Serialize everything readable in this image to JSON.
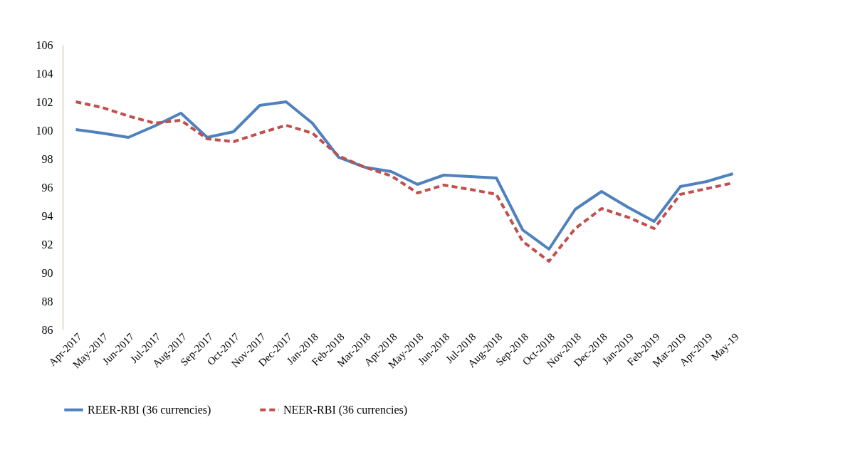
{
  "chart_data": {
    "type": "line",
    "categories": [
      "Apr-2017",
      "May-2017",
      "Jun-2017",
      "Jul-2017",
      "Aug-2017",
      "Sep-2017",
      "Oct-2017",
      "Nov-2017",
      "Dec-2017",
      "Jan-2018",
      "Feb-2018",
      "Mar-2018",
      "Apr-2018",
      "May-2018",
      "Jun-2018",
      "Jul-2018",
      "Aug-2018",
      "Sep-2018",
      "Oct-2018",
      "Nov-2018",
      "Dec-2018",
      "Jan-2019",
      "Feb-2019",
      "Mar-2019",
      "Apr-2019",
      "May-19"
    ],
    "series": [
      {
        "name": "REER-RBI (36 currencies)",
        "color": "#4f81bd",
        "line_style": "solid",
        "values": [
          100.05,
          99.8,
          99.5,
          100.3,
          101.2,
          99.5,
          99.9,
          101.75,
          102.0,
          100.5,
          98.1,
          97.4,
          97.1,
          96.2,
          96.85,
          96.75,
          96.65,
          93.0,
          91.65,
          94.45,
          95.7,
          94.6,
          93.6,
          96.05,
          96.4,
          96.95
        ]
      },
      {
        "name": "NEER-RBI (36 currencies)",
        "color": "#c0504d",
        "line_style": "dashed",
        "values": [
          102.0,
          101.6,
          101.0,
          100.5,
          100.7,
          99.4,
          99.2,
          99.8,
          100.35,
          99.8,
          98.2,
          97.4,
          96.8,
          95.6,
          96.15,
          95.85,
          95.5,
          92.2,
          90.8,
          93.1,
          94.5,
          93.9,
          93.1,
          95.5,
          95.9,
          96.3
        ]
      }
    ],
    "ylim": [
      86,
      106
    ],
    "yticks": [
      86,
      88,
      90,
      92,
      94,
      96,
      98,
      100,
      102,
      104,
      106
    ],
    "grid": false,
    "legend": "bottom",
    "marker": "none"
  }
}
